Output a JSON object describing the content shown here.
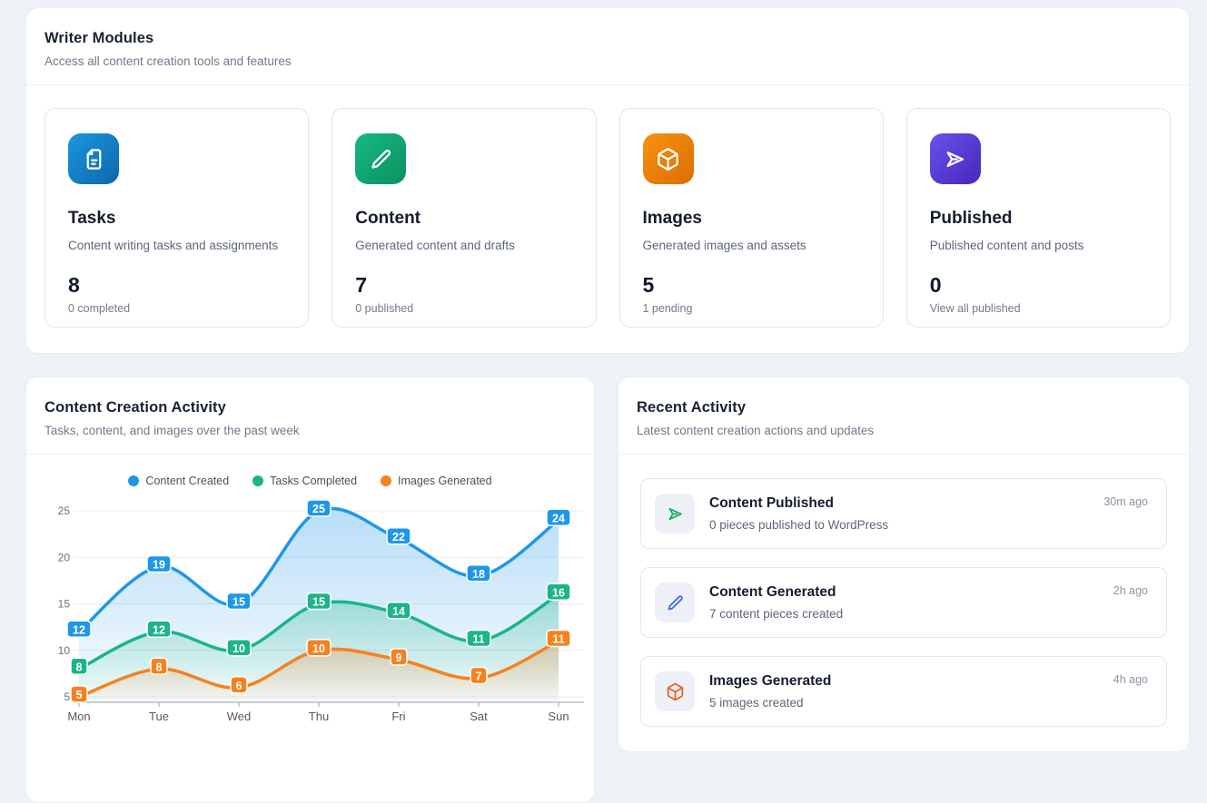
{
  "modules_section": {
    "title": "Writer Modules",
    "subtitle": "Access all content creation tools and features",
    "cards": [
      {
        "icon": "document-icon",
        "icon_gradient": [
          "#1b96dd",
          "#0d68ad"
        ],
        "title": "Tasks",
        "description": "Content writing tasks and assignments",
        "count": "8",
        "sub_label": "0 completed"
      },
      {
        "icon": "pencil-icon",
        "icon_gradient": [
          "#17b980",
          "#0b9161"
        ],
        "title": "Content",
        "description": "Generated content and drafts",
        "count": "7",
        "sub_label": "0 published"
      },
      {
        "icon": "cube-icon",
        "icon_gradient": [
          "#f6930f",
          "#dd6d04"
        ],
        "title": "Images",
        "description": "Generated images and assets",
        "count": "5",
        "sub_label": "1 pending"
      },
      {
        "icon": "send-icon",
        "icon_gradient": [
          "#6753e9",
          "#4826bd"
        ],
        "title": "Published",
        "description": "Published content and posts",
        "count": "0",
        "sub_label": "View all published"
      }
    ]
  },
  "chart_section": {
    "title": "Content Creation Activity",
    "subtitle": "Tasks, content, and images over the past week"
  },
  "chart_data": {
    "type": "line",
    "x": [
      "Mon",
      "Tue",
      "Wed",
      "Thu",
      "Fri",
      "Sat",
      "Sun"
    ],
    "series": [
      {
        "name": "Content Created",
        "color": "#1e97e9",
        "values": [
          12,
          19,
          15,
          25,
          22,
          18,
          24
        ]
      },
      {
        "name": "Tasks Completed",
        "color": "#1cb489",
        "values": [
          8,
          12,
          10,
          15,
          14,
          11,
          16
        ]
      },
      {
        "name": "Images Generated",
        "color": "#f5821f",
        "values": [
          5,
          8,
          6,
          10,
          9,
          7,
          11
        ]
      }
    ],
    "ylim": [
      5,
      25
    ],
    "yticks": [
      5,
      10,
      15,
      20,
      25
    ],
    "grid": true,
    "smooth": true,
    "area": true,
    "point_labels": true,
    "legend_position": "top"
  },
  "activity_section": {
    "title": "Recent Activity",
    "subtitle": "Latest content creation actions and updates",
    "items": [
      {
        "icon": "send-icon",
        "icon_color": "#18b154",
        "title": "Content Published",
        "description": "0 pieces published to WordPress",
        "time": "30m ago"
      },
      {
        "icon": "pencil-icon",
        "icon_color": "#3b6ae8",
        "title": "Content Generated",
        "description": "7 content pieces created",
        "time": "2h ago"
      },
      {
        "icon": "cube-icon",
        "icon_color": "#f15d22",
        "title": "Images Generated",
        "description": "5 images created",
        "time": "4h ago"
      }
    ]
  }
}
